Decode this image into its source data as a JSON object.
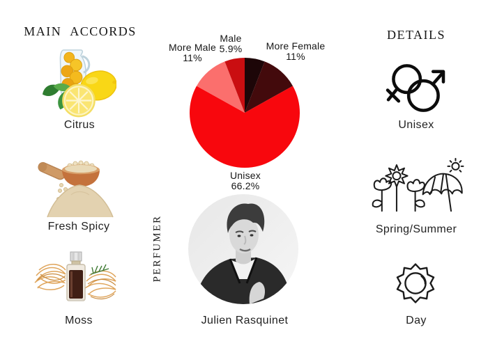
{
  "theme": {
    "background": "#ffffff",
    "text_color": "#1e1e1e"
  },
  "accords_panel": {
    "title": "MAIN ACCORDS",
    "items": [
      {
        "name": "Citrus",
        "icon": "citrus-photo"
      },
      {
        "name": "Fresh Spicy",
        "icon": "fresh-spicy-photo"
      },
      {
        "name": "Moss",
        "icon": "moss-photo"
      }
    ]
  },
  "perfumer": {
    "heading": "PERFUMER",
    "name": "Julien Rasquinet",
    "photo": "black-and-white-portrait"
  },
  "details_panel": {
    "title": "DETAILS",
    "items": [
      {
        "label": "Unisex",
        "icon": "unisex-gender-icon"
      },
      {
        "label": "Spring/Summer",
        "icon": "spring-summer-icon"
      },
      {
        "label": "Day",
        "icon": "day-sun-icon"
      }
    ]
  },
  "chart_data": {
    "type": "pie",
    "start_angle_deg": 0,
    "direction": "clockwise",
    "legend": "none",
    "slices": [
      {
        "label": "Female",
        "value": 5.9,
        "color": "#1d0608",
        "label_visible": false
      },
      {
        "label": "More Female",
        "value": 11,
        "color": "#430a0c",
        "label_visible": true
      },
      {
        "label": "Unisex",
        "value": 66.2,
        "color": "#f8070d",
        "label_visible": true
      },
      {
        "label": "More Male",
        "value": 11,
        "color": "#fb6f6d",
        "label_visible": true
      },
      {
        "label": "Male",
        "value": 5.9,
        "color": "#ca0e11",
        "label_visible": true
      }
    ],
    "callouts": {
      "more_male": {
        "name": "More Male",
        "pct": "11%"
      },
      "male": {
        "name": "Male",
        "pct": "5.9%"
      },
      "more_female": {
        "name": "More Female",
        "pct": "11%"
      },
      "unisex": {
        "name": "Unisex",
        "pct": "66.2%"
      }
    }
  }
}
